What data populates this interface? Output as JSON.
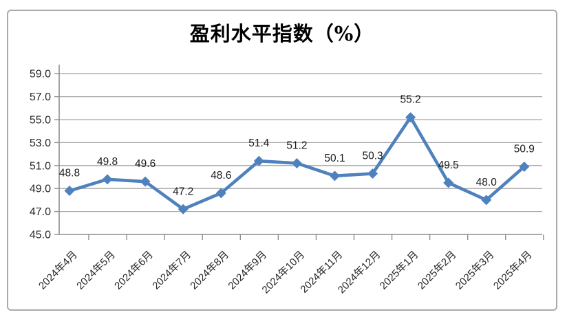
{
  "chart_data": {
    "type": "line",
    "title": "盈利水平指数（%）",
    "categories": [
      "2024年4月",
      "2024年5月",
      "2024年6月",
      "2024年7月",
      "2024年8月",
      "2024年9月",
      "2024年10月",
      "2024年11月",
      "2024年12月",
      "2025年1月",
      "2025年2月",
      "2025年3月",
      "2025年4月"
    ],
    "values": [
      48.8,
      49.8,
      49.6,
      47.2,
      48.6,
      51.4,
      51.2,
      50.1,
      50.3,
      55.2,
      49.5,
      48.0,
      50.9
    ],
    "data_labels": [
      "48.8",
      "49.8",
      "49.6",
      "47.2",
      "48.6",
      "51.4",
      "51.2",
      "50.1",
      "50.3",
      "55.2",
      "49.5",
      "48.0",
      "50.9"
    ],
    "xlabel": "",
    "ylabel": "",
    "ylim": [
      45.0,
      59.0
    ],
    "ytick_step": 2.0,
    "ytick_labels": [
      "45.0",
      "47.0",
      "49.0",
      "51.0",
      "53.0",
      "55.0",
      "57.0",
      "59.0"
    ],
    "grid": true,
    "legend_position": "none",
    "marker_shape": "diamond",
    "colors": {
      "series": "#4F81BD",
      "gridline": "#A6A6A6",
      "axis": "#8E8E8E",
      "tick_label": "#262626",
      "data_label": "#1A1A1A",
      "title": "#000000",
      "frame_border": "#AAAAAA"
    }
  }
}
